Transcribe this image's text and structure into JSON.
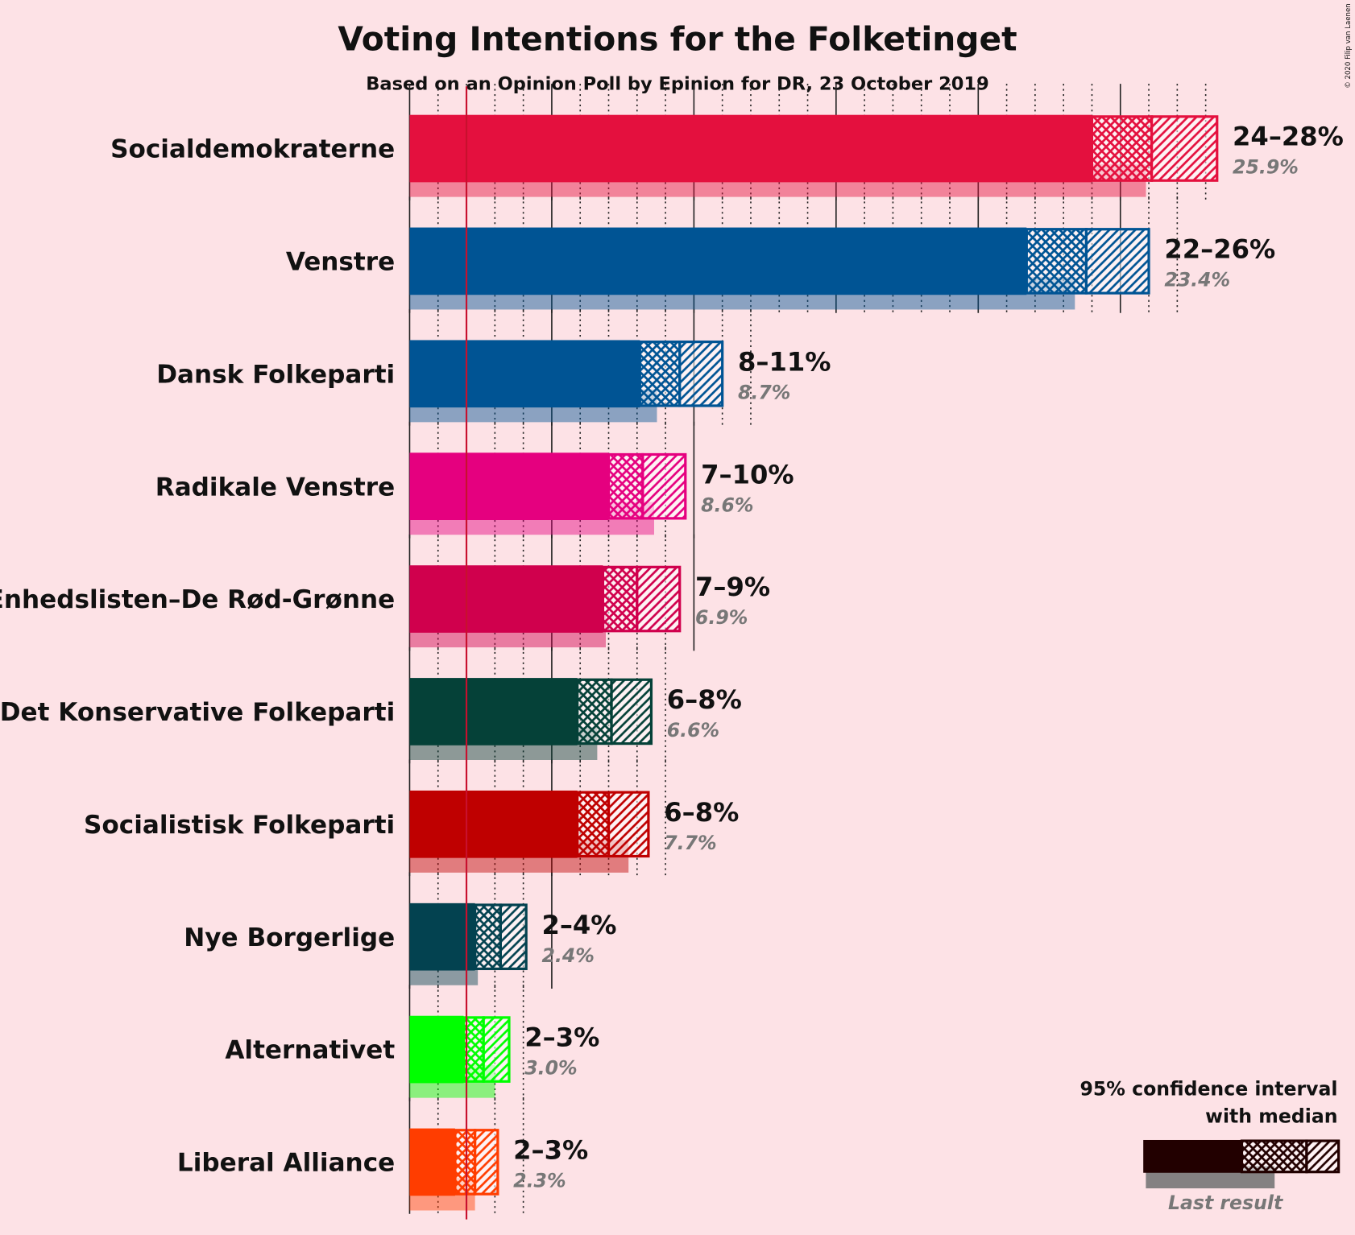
{
  "chart_data": {
    "type": "interval_bar",
    "title": "Voting Intentions for the Folketinget",
    "subtitle": "Based on an Opinion Poll by Epinion for DR, 23 October 2019",
    "copyright": "© 2020 Filip van Laenen",
    "categories": [
      "Socialdemokraterne",
      "Venstre",
      "Dansk Folkeparti",
      "Radikale Venstre",
      "Enhedslisten–De Rød-Grønne",
      "Det Konservative Folkeparti",
      "Socialistisk Folkeparti",
      "Nye Borgerlige",
      "Alternativet",
      "Liberal Alliance"
    ],
    "colors": [
      "#E4103E",
      "#005494",
      "#005494",
      "#E5007F",
      "#D0004D",
      "#054138",
      "#BF0000",
      "#034250",
      "#00FF00",
      "#FF3D00"
    ],
    "ci_low": [
      24.0,
      21.7,
      8.1,
      7.0,
      6.8,
      5.9,
      5.9,
      2.3,
      1.9,
      1.6
    ],
    "median": [
      26.1,
      23.8,
      9.5,
      8.2,
      8.0,
      7.1,
      7.0,
      3.2,
      2.6,
      2.3
    ],
    "ci_high": [
      28.4,
      26.0,
      11.0,
      9.7,
      9.5,
      8.5,
      8.4,
      4.1,
      3.5,
      3.1
    ],
    "range_labels": [
      "24–28%",
      "22–26%",
      "8–11%",
      "7–10%",
      "7–9%",
      "6–8%",
      "6–8%",
      "2–4%",
      "2–3%",
      "2–3%"
    ],
    "last_result": [
      25.9,
      23.4,
      8.7,
      8.6,
      6.9,
      6.6,
      7.7,
      2.4,
      3.0,
      2.3
    ],
    "last_result_labels": [
      "25.9%",
      "23.4%",
      "8.7%",
      "8.6%",
      "6.9%",
      "6.6%",
      "7.7%",
      "2.4%",
      "3.0%",
      "2.3%"
    ],
    "threshold": 2,
    "threshold_color": "#C8102E",
    "xlim": [
      0,
      30
    ],
    "xticks": [
      0,
      5,
      10,
      15,
      20,
      25
    ],
    "minor_xticks": [
      1,
      2,
      3,
      4,
      6,
      7,
      8,
      9,
      11,
      12,
      13,
      14,
      16,
      17,
      18,
      19,
      21,
      22,
      23,
      24,
      26,
      27,
      28
    ],
    "legend": {
      "title": [
        "95% confidence interval",
        "with median"
      ],
      "last_result": "Last result",
      "color": "#220000"
    }
  }
}
